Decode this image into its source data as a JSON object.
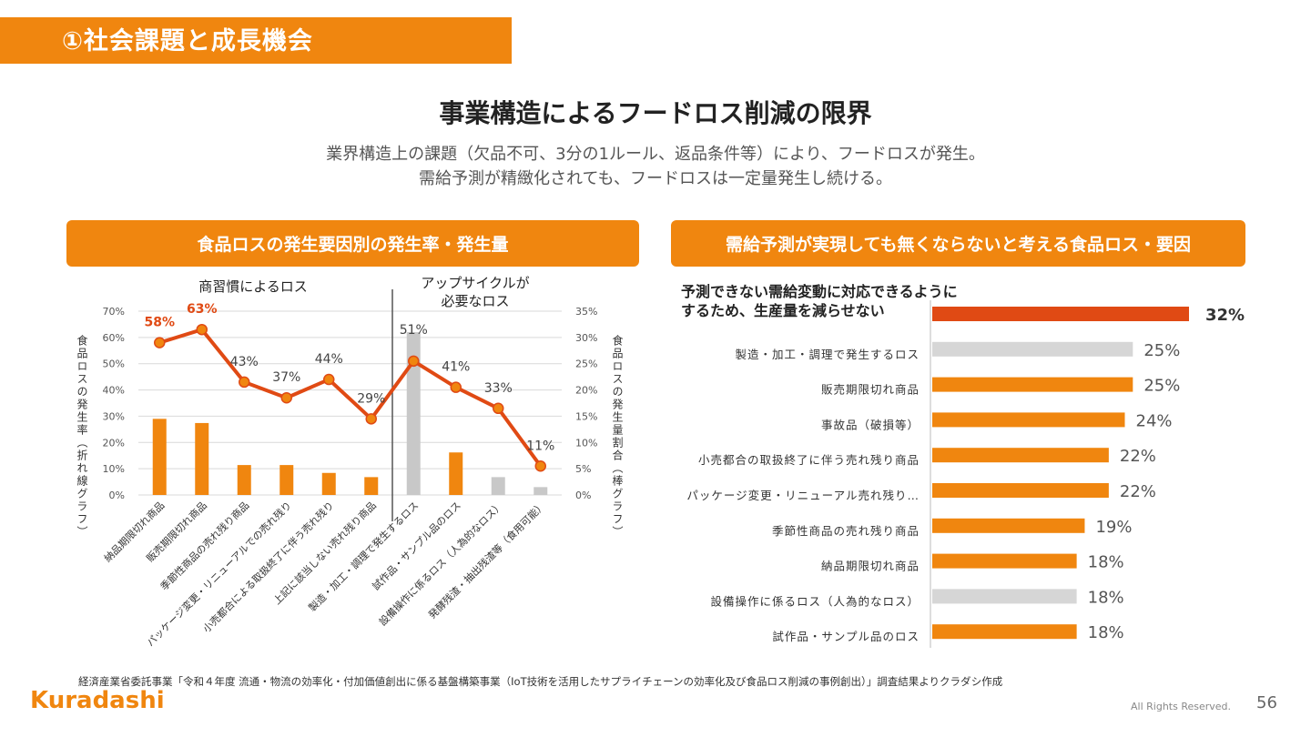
{
  "header": {
    "title": "①社会課題と成長機会"
  },
  "main": {
    "title": "事業構造によるフードロス削減の限界",
    "subtitle_line1": "業界構造上の課題（欠品不可、3分の1ルール、返品条件等）により、フードロスが発生。",
    "subtitle_line2": "需給予測が精緻化されても、フードロスは一定量発生し続ける。"
  },
  "left_panel": {
    "heading": "食品ロスの発生要因別の発生率・発生量",
    "group_label_1": "商習慣によるロス",
    "group_label_2_line1": "アップサイクルが",
    "group_label_2_line2": "必要なロス",
    "y_left_label": "食品ロスの発生率（折れ線グラフ）",
    "y_right_label": "食品ロスの発生量割合（棒グラフ）"
  },
  "right_panel": {
    "heading": "需給予測が実現しても無くならないと考える食品ロス・要因",
    "top_label_line1": "予測できない需給変動に対応できるように",
    "top_label_line2": "するため、生産量を減らせない"
  },
  "chart_data": [
    {
      "type": "bar+line",
      "categories": [
        "納品期限切れ商品",
        "販売期限切れ商品",
        "季節性商品の売れ残り商品",
        "パッケージ変更・リニューアルでの売れ残り",
        "小売都合による取扱終了に伴う売れ残り",
        "上記に該当しない売れ残り商品",
        "製造・加工・調理で発生するロス",
        "試作品・サンプル品のロス",
        "設備操作に係るロス（人為的なロス）",
        "発酵残渣・抽出残渣等（食用可能）"
      ],
      "line_values": [
        58,
        63,
        43,
        37,
        44,
        29,
        51,
        41,
        33,
        11
      ],
      "line_labels": [
        "58%",
        "63%",
        "43%",
        "37%",
        "44%",
        "29%",
        "51%",
        "41%",
        "33%",
        "11%"
      ],
      "line_highlight": [
        true,
        true,
        false,
        false,
        false,
        false,
        false,
        false,
        false,
        false
      ],
      "bar_values": [
        14.5,
        13.7,
        5.7,
        5.7,
        4.2,
        3.4,
        31.0,
        8.1,
        3.4,
        1.5
      ],
      "bar_colors": [
        "#f0860f",
        "#f0860f",
        "#f0860f",
        "#f0860f",
        "#f0860f",
        "#f0860f",
        "#c8c8c8",
        "#f0860f",
        "#c8c8c8",
        "#c8c8c8"
      ],
      "y_left_ticks": [
        "0%",
        "10%",
        "20%",
        "30%",
        "40%",
        "50%",
        "60%",
        "70%"
      ],
      "y_right_ticks": [
        "0%",
        "5%",
        "10%",
        "15%",
        "20%",
        "25%",
        "30%",
        "35%"
      ],
      "ylim_left": [
        0,
        70
      ],
      "ylim_right": [
        0,
        35
      ],
      "line_color": "#e04a14",
      "label_accent": "#e04a14"
    },
    {
      "type": "bar",
      "orientation": "horizontal",
      "categories": [
        "予測できない需給変動に対応できるようにするため、生産量を減らせない",
        "製造・加工・調理で発生するロス",
        "販売期限切れ商品",
        "事故品（破損等）",
        "小売都合の取扱終了に伴う売れ残り商品",
        "パッケージ変更・リニューアル売れ残り…",
        "季節性商品の売れ残り商品",
        "納品期限切れ商品",
        "設備操作に係るロス（人為的なロス）",
        "試作品・サンプル品のロス"
      ],
      "values": [
        32,
        25,
        25,
        24,
        22,
        22,
        19,
        18,
        18,
        18
      ],
      "value_labels": [
        "32%",
        "25%",
        "25%",
        "24%",
        "22%",
        "22%",
        "19%",
        "18%",
        "18%",
        "18%"
      ],
      "bar_colors": [
        "#e04a14",
        "#d6d6d6",
        "#f0860f",
        "#f0860f",
        "#f0860f",
        "#f0860f",
        "#f0860f",
        "#f0860f",
        "#d6d6d6",
        "#f0860f"
      ],
      "xlim": [
        0,
        32
      ]
    }
  ],
  "footer": {
    "note": "経済産業省委託事業「令和４年度 流通・物流の効率化・付加価値創出に係る基盤構築事業（IoT技術を活用したサプライチェーンの効率化及び食品ロス削減の事例創出）」調査結果よりクラダシ作成",
    "logo": "Kuradashi",
    "rights": "All Rights Reserved.",
    "page": "56"
  }
}
